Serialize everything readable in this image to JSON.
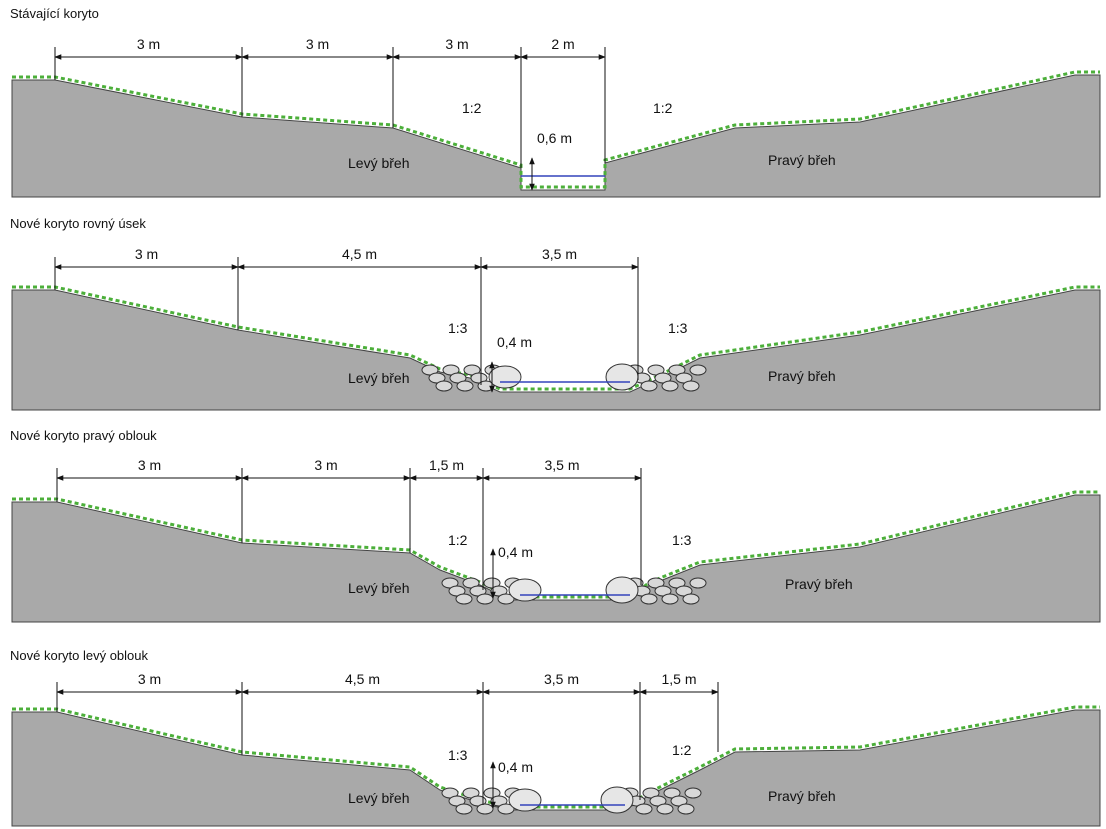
{
  "panels": [
    {
      "title": "Stávající koryto",
      "dimensions": [
        "3 m",
        "3 m",
        "3 m",
        "2 m"
      ],
      "slopes": [
        "1:2",
        "1:2"
      ],
      "depth": "0,6 m",
      "left_bank": "Levý břeh",
      "right_bank": "Pravý břeh"
    },
    {
      "title": "Nové koryto rovný úsek",
      "dimensions": [
        "3 m",
        "4,5 m",
        "3,5 m"
      ],
      "slopes": [
        "1:3",
        "1:3"
      ],
      "depth": "0,4 m",
      "left_bank": "Levý břeh",
      "right_bank": "Pravý břeh"
    },
    {
      "title": "Nové koryto pravý oblouk",
      "dimensions": [
        "3 m",
        "3 m",
        "1,5 m",
        "3,5 m"
      ],
      "slopes": [
        "1:2",
        "1:3"
      ],
      "depth": "0,4 m",
      "left_bank": "Levý břeh",
      "right_bank": "Pravý břeh"
    },
    {
      "title": "Nové koryto levý oblouk",
      "dimensions": [
        "3 m",
        "4,5 m",
        "3,5 m",
        "1,5 m"
      ],
      "slopes": [
        "1:3",
        "1:2"
      ],
      "depth": "0,4 m",
      "left_bank": "Levý břeh",
      "right_bank": "Pravý břeh"
    }
  ]
}
